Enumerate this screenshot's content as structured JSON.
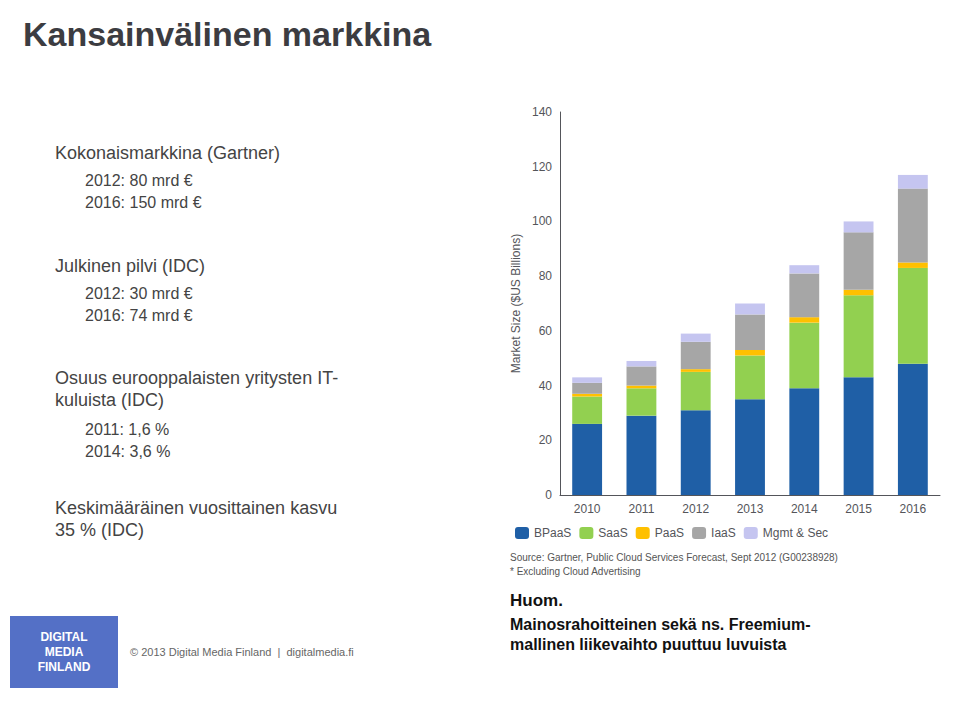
{
  "chart_data": {
    "type": "bar",
    "title": "Kansainvälinen markkina",
    "categories": [
      "2010",
      "2011",
      "2012",
      "2013",
      "2014",
      "2015",
      "2016"
    ],
    "series": [
      {
        "name": "BPaaS",
        "color": "#1f5fa6",
        "values": [
          26,
          29,
          31,
          35,
          39,
          43,
          48
        ]
      },
      {
        "name": "SaaS",
        "color": "#92d050",
        "values": [
          10,
          10,
          14,
          16,
          24,
          30,
          35
        ]
      },
      {
        "name": "PaaS",
        "color": "#ffc000",
        "values": [
          1,
          1,
          1,
          2,
          2,
          2,
          2
        ]
      },
      {
        "name": "IaaS",
        "color": "#a6a6a6",
        "values": [
          4,
          7,
          10,
          13,
          16,
          21,
          27
        ]
      },
      {
        "name": "Mgmt & Sec",
        "color": "#c5c5f0",
        "values": [
          2,
          2,
          3,
          4,
          3,
          4,
          5
        ]
      }
    ],
    "ylabel": "Market Size ($US Billions)",
    "ylim": [
      0,
      140
    ],
    "yticks": [
      0,
      20,
      40,
      60,
      80,
      100,
      120,
      140
    ],
    "stacked": true,
    "grid": false,
    "legend": "bottom",
    "annotations": [
      "Kokonaismarkkina (Gartner)",
      "2012: 80 mrd €",
      "2016: 150 mrd €",
      "Julkinen pilvi (IDC)",
      "2012: 30 mrd €",
      "2016: 74 mrd €",
      "Osuus eurooppalaisten yritysten IT-\nkuluista (IDC)",
      "2011: 1,6 %",
      "2014: 3,6 %",
      "Keskimääräinen vuosittainen kasvu\n35 % (IDC)",
      "Source: Gartner, Public Cloud Services Forecast, Sept 2012 (G00238928)\n* Excluding Cloud Advertising",
      "Huom.",
      "Mainosrahoitteinen sekä ns. Freemium-\nmallinen liikevaihto puuttuu luvuista",
      "DIGITAL\nMEDIA\nFINLAND",
      "© 2013 Digital Media Finland  |  digitalmedia.fi"
    ]
  }
}
